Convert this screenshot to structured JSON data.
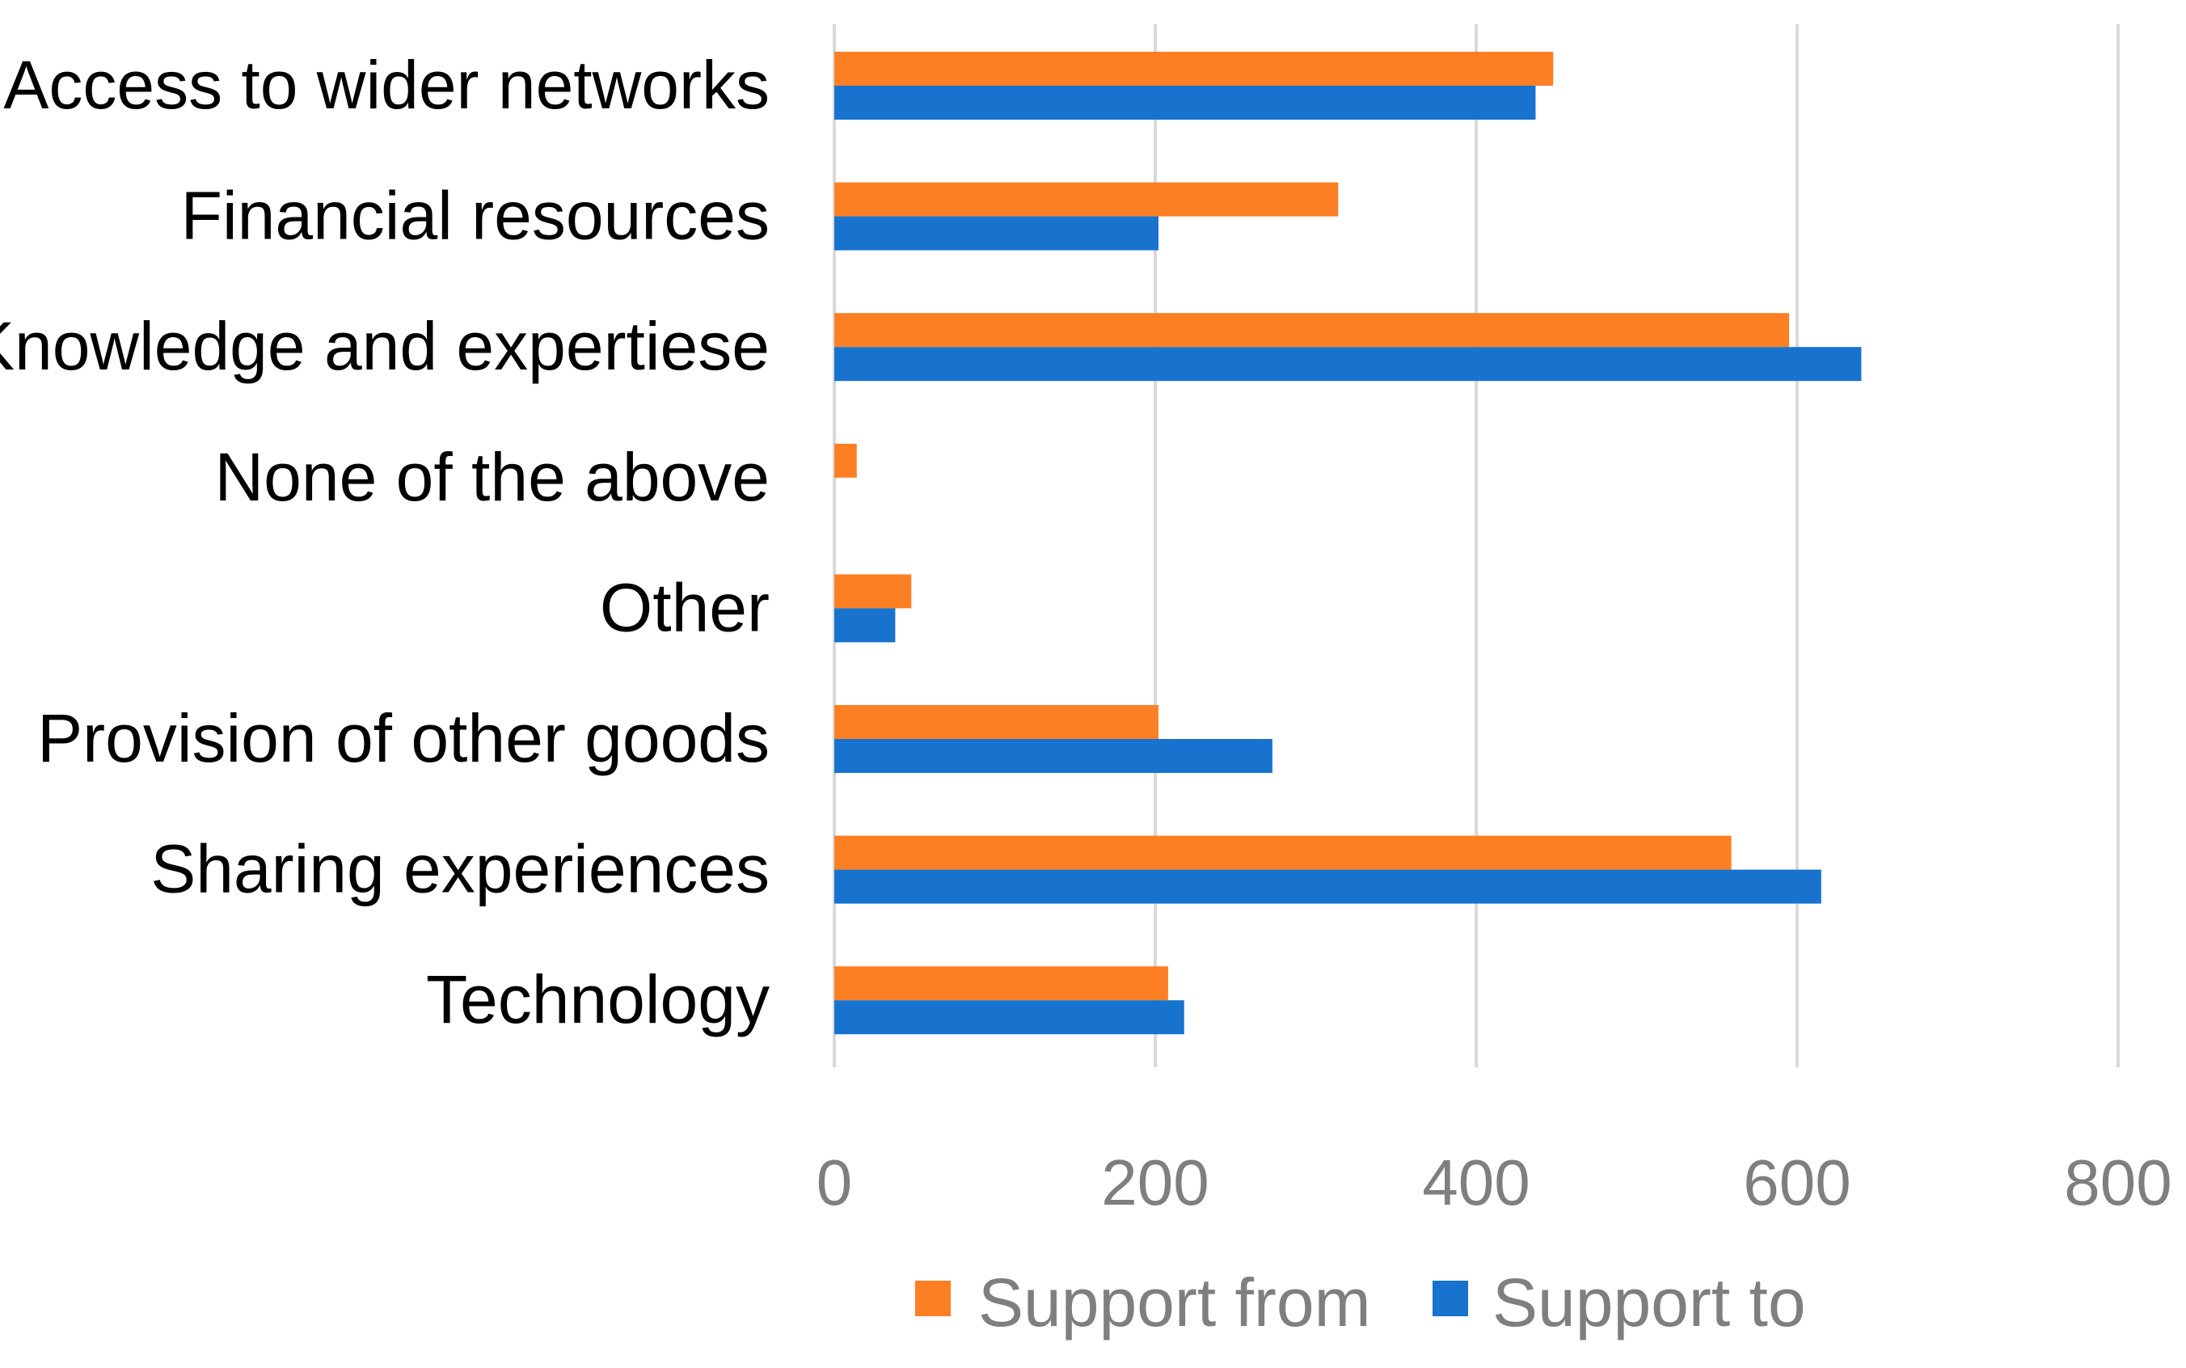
{
  "chart_data": {
    "type": "bar",
    "orientation": "horizontal",
    "title": "",
    "xlabel": "",
    "ylabel": "",
    "categories": [
      "Access to wider networks",
      "Financial resources",
      "Knowledge and expertiese",
      "None of the above",
      "Other",
      "Provision of other goods",
      "Sharing experiences",
      "Technology"
    ],
    "series": [
      {
        "name": "Support from",
        "color": "#fd7f24",
        "values": [
          448,
          314,
          595,
          14,
          48,
          202,
          559,
          208
        ]
      },
      {
        "name": "Support to",
        "color": "#1773ce",
        "values": [
          437,
          202,
          640,
          0,
          38,
          273,
          615,
          218
        ]
      }
    ],
    "xlim": [
      0,
      800
    ],
    "xticks": [
      "0",
      "200",
      "400",
      "600",
      "800"
    ],
    "grid": "vertical",
    "legend_position": "bottom"
  }
}
